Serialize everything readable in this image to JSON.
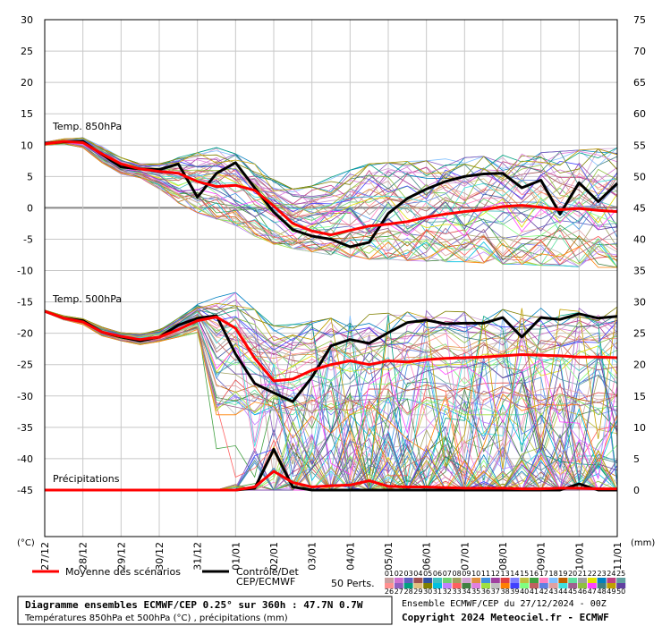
{
  "chart_data": {
    "type": "line",
    "title": "Diagramme ensembles ECMWF/CEP 0.25° sur 360h : 47.7N 0.7W",
    "subtitle": "Températures 850hPa et 500hPa (°C) , précipitations (mm)",
    "run_info": "Ensemble ECMWF/CEP du 27/12/2024 - 00Z",
    "copyright": "Copyright 2024 Meteociel.fr - ECMWF",
    "left_axis_label": "(°C)",
    "right_axis_label": "(mm)",
    "left_ticks": [
      30,
      25,
      20,
      15,
      10,
      5,
      0,
      -5,
      -10,
      -15,
      -20,
      -25,
      -30,
      -35,
      -40,
      -45
    ],
    "left_ylim": [
      -45,
      30
    ],
    "right_ticks": [
      75,
      70,
      65,
      60,
      55,
      50,
      45,
      40,
      35,
      30,
      25,
      20,
      15,
      10,
      5,
      0
    ],
    "right_ylim": [
      0,
      75
    ],
    "x_labels": [
      "27/12",
      "28/12",
      "29/12",
      "30/12",
      "31/12",
      "01/01",
      "02/01",
      "03/01",
      "04/01",
      "05/01",
      "06/01",
      "07/01",
      "08/01",
      "09/01",
      "10/01",
      "11/01"
    ],
    "panel_labels": {
      "t850": "Temp. 850hPa",
      "t500": "Temp. 500hPa",
      "precip": "Précipitations"
    },
    "legend": {
      "mean": "Moyenne des scénarios",
      "control_line1": "Contrôle/Det",
      "control_line2": "CEP/ECMWF",
      "perts": "50 Perts.",
      "member_numbers": [
        "01",
        "02",
        "03",
        "04",
        "05",
        "06",
        "07",
        "08",
        "09",
        "10",
        "11",
        "12",
        "13",
        "14",
        "15",
        "16",
        "17",
        "18",
        "19",
        "20",
        "21",
        "22",
        "23",
        "24",
        "25",
        "26",
        "27",
        "28",
        "29",
        "30",
        "31",
        "32",
        "33",
        "34",
        "35",
        "36",
        "37",
        "38",
        "39",
        "40",
        "41",
        "42",
        "43",
        "44",
        "45",
        "46",
        "47",
        "48",
        "49",
        "50"
      ],
      "member_colors": [
        "#c8a0a0",
        "#d070d0",
        "#6060c0",
        "#a05050",
        "#3050a0",
        "#40c0c0",
        "#70d070",
        "#a0a060",
        "#d0a0d0",
        "#e09040",
        "#4090e0",
        "#a040a0",
        "#e04040",
        "#8080ff",
        "#c0c040",
        "#40a040",
        "#ff80c0",
        "#80c0ff",
        "#c06000",
        "#60e0a0",
        "#a0a0a0",
        "#e0e000",
        "#0080c0",
        "#c04080",
        "#60a0a0",
        "#ff9090",
        "#9060c0",
        "#00a080",
        "#e0c080",
        "#808000",
        "#00c0e0",
        "#c080ff",
        "#ff6060",
        "#408040",
        "#e080e0",
        "#a0e040",
        "#c0c0c0",
        "#ff8000",
        "#4040ff",
        "#80ff80",
        "#c06060",
        "#6080e0",
        "#e0a0a0",
        "#40e0e0",
        "#a06090",
        "#90c040",
        "#ff40ff",
        "#408080",
        "#c0a000",
        "#6040a0"
      ]
    },
    "series": [
      {
        "name": "Moyenne des scénarios",
        "color": "#ff0000",
        "t850": [
          10.2,
          10.6,
          10.4,
          8.6,
          7.0,
          6.2,
          5.8,
          5.5,
          4.2,
          3.4,
          3.6,
          2.8,
          0.3,
          -2.5,
          -3.7,
          -4.3,
          -3.6,
          -2.9,
          -2.6,
          -2.2,
          -1.5,
          -1.0,
          -0.6,
          -0.3,
          0.2,
          0.4,
          0.1,
          -0.3,
          -0.1,
          -0.4,
          -0.6
        ],
        "t500": [
          -16.5,
          -17.6,
          -18.2,
          -19.8,
          -20.5,
          -21.0,
          -20.6,
          -19.4,
          -18.0,
          -17.4,
          -19.2,
          -24.0,
          -27.6,
          -27.3,
          -25.9,
          -25.0,
          -24.4,
          -25.0,
          -24.4,
          -24.6,
          -24.2,
          -24.0,
          -23.9,
          -23.8,
          -23.6,
          -23.4,
          -23.5,
          -23.6,
          -23.8,
          -23.8,
          -23.9
        ],
        "precip": [
          0,
          0,
          0,
          0,
          0,
          0,
          0,
          0,
          0,
          0,
          0,
          0.5,
          3.0,
          1.2,
          0.5,
          0.7,
          0.8,
          1.5,
          0.6,
          0.5,
          0.5,
          0.4,
          0.3,
          0.3,
          0.3,
          0.2,
          0.2,
          0.3,
          0.3,
          0.2,
          0.2
        ]
      },
      {
        "name": "Contrôle/Det",
        "color": "#000000",
        "t850": [
          10.3,
          10.5,
          10.6,
          8.5,
          6.5,
          6.2,
          6.1,
          7.0,
          1.7,
          5.5,
          7.2,
          3.2,
          -0.7,
          -3.5,
          -4.5,
          -5.0,
          -6.2,
          -5.5,
          -0.9,
          1.5,
          3.0,
          4.2,
          5.0,
          5.4,
          5.5,
          3.2,
          4.4,
          -1.0,
          4.0,
          1.0,
          3.9
        ],
        "t500": [
          -16.5,
          -17.6,
          -18.0,
          -19.8,
          -20.6,
          -21.2,
          -20.6,
          -18.7,
          -17.6,
          -17.2,
          -23.3,
          -28.0,
          -29.5,
          -30.9,
          -27.0,
          -22.0,
          -21.0,
          -21.6,
          -19.9,
          -18.3,
          -17.9,
          -18.5,
          -18.4,
          -18.4,
          -17.5,
          -20.6,
          -17.5,
          -17.8,
          -16.9,
          -17.6,
          -17.3
        ],
        "precip": [
          0,
          0,
          0,
          0,
          0,
          0,
          0,
          0,
          0,
          0,
          0,
          0.3,
          6.5,
          0.5,
          0,
          0,
          0,
          0,
          0,
          0,
          0,
          0,
          0,
          0,
          0,
          0,
          0,
          0,
          1.0,
          0,
          0
        ]
      }
    ],
    "ensemble": {
      "members": 50,
      "spread_note": "50 perturbed members",
      "t850_low": [
        10.0,
        10.2,
        9.6,
        7.2,
        5.4,
        4.8,
        3.0,
        0.8,
        -0.8,
        -1.8,
        -2.8,
        -4.5,
        -5.8,
        -6.5,
        -7.0,
        -7.5,
        -8.0,
        -8.2,
        -8.2,
        -8.4,
        -8.5,
        -8.6,
        -8.6,
        -8.8,
        -9.0,
        -9.0,
        -9.2,
        -9.2,
        -9.4,
        -9.5,
        -9.5
      ],
      "t850_high": [
        10.5,
        11.0,
        11.2,
        9.8,
        8.0,
        7.0,
        7.0,
        8.0,
        8.8,
        9.6,
        8.6,
        7.0,
        4.5,
        3.0,
        3.5,
        5.0,
        6.0,
        7.0,
        7.2,
        7.4,
        7.5,
        7.8,
        8.0,
        8.2,
        8.4,
        8.6,
        8.8,
        9.0,
        9.2,
        9.4,
        9.6
      ],
      "t500_low": [
        -16.6,
        -17.9,
        -18.6,
        -20.4,
        -21.2,
        -21.8,
        -21.3,
        -20.6,
        -19.9,
        -44.5,
        -44.8,
        -45.0,
        -45.0,
        -45.0,
        -45.0,
        -45.0,
        -45.0,
        -45.0,
        -45.0,
        -45.0,
        -45.0,
        -45.0,
        -45.0,
        -45.0,
        -45.0,
        -45.0,
        -45.0,
        -45.0,
        -45.0,
        -45.0,
        -45.0
      ],
      "t500_high": [
        -16.3,
        -17.2,
        -17.7,
        -19.0,
        -19.9,
        -20.1,
        -19.4,
        -17.6,
        -15.4,
        -14.0,
        -13.5,
        -16.2,
        -18.8,
        -18.6,
        -18.0,
        -17.6,
        -17.2,
        -17.0,
        -16.8,
        -16.6,
        -16.4,
        -16.5,
        -16.6,
        -16.4,
        -16.2,
        -16.0,
        -16.0,
        -16.2,
        -16.0,
        -15.8,
        -15.8
      ],
      "precip_high": [
        0,
        0,
        0,
        0,
        0,
        0,
        0,
        0,
        0,
        0.3,
        1.0,
        8.0,
        10.0,
        11.0,
        9.0,
        12.0,
        11.0,
        13.0,
        10.0,
        9.0,
        8.0,
        9.0,
        8.0,
        7.0,
        8.0,
        7.0,
        8.0,
        9.0,
        8.0,
        7.0,
        8.0
      ]
    }
  }
}
